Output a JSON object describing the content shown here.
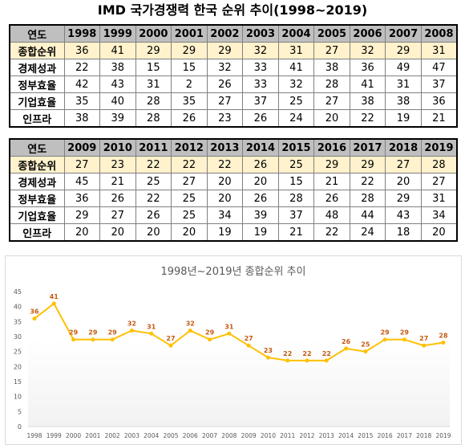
{
  "page_title": "IMD 국가경쟁력 한국 순위 추이(1998~2019)",
  "table": {
    "row_labels": [
      "연도",
      "종합순위",
      "경제성과",
      "정부효율",
      "기업효율",
      "인프라"
    ],
    "blocks": [
      {
        "years": [
          "1998",
          "1999",
          "2000",
          "2001",
          "2002",
          "2003",
          "2004",
          "2005",
          "2006",
          "2007",
          "2008"
        ],
        "rows": [
          [
            "36",
            "41",
            "29",
            "29",
            "29",
            "32",
            "31",
            "27",
            "32",
            "29",
            "31"
          ],
          [
            "22",
            "38",
            "15",
            "15",
            "32",
            "33",
            "41",
            "38",
            "36",
            "49",
            "47"
          ],
          [
            "42",
            "43",
            "31",
            "2",
            "26",
            "33",
            "32",
            "28",
            "41",
            "31",
            "37"
          ],
          [
            "35",
            "40",
            "28",
            "35",
            "27",
            "37",
            "25",
            "27",
            "38",
            "38",
            "36"
          ],
          [
            "38",
            "39",
            "28",
            "26",
            "23",
            "26",
            "24",
            "20",
            "22",
            "19",
            "21"
          ]
        ]
      },
      {
        "years": [
          "2009",
          "2010",
          "2011",
          "2012",
          "2013",
          "2014",
          "2015",
          "2016",
          "2017",
          "2018",
          "2019"
        ],
        "rows": [
          [
            "27",
            "23",
            "22",
            "22",
            "22",
            "26",
            "25",
            "29",
            "29",
            "27",
            "28"
          ],
          [
            "45",
            "21",
            "25",
            "27",
            "20",
            "20",
            "15",
            "21",
            "22",
            "20",
            "27"
          ],
          [
            "36",
            "26",
            "22",
            "25",
            "20",
            "26",
            "28",
            "26",
            "28",
            "29",
            "31"
          ],
          [
            "29",
            "27",
            "26",
            "25",
            "34",
            "39",
            "37",
            "48",
            "44",
            "43",
            "34"
          ],
          [
            "20",
            "20",
            "20",
            "20",
            "19",
            "19",
            "21",
            "22",
            "24",
            "18",
            "20"
          ]
        ]
      }
    ]
  },
  "chart_data": {
    "type": "line",
    "title": "1998년~2019년 종합순위 추이",
    "x": [
      "1998",
      "1999",
      "2000",
      "2001",
      "2002",
      "2003",
      "2004",
      "2005",
      "2006",
      "2007",
      "2008",
      "2009",
      "2010",
      "2011",
      "2012",
      "2013",
      "2014",
      "2015",
      "2016",
      "2017",
      "2018",
      "2019"
    ],
    "series": [
      {
        "values": [
          36,
          41,
          29,
          29,
          29,
          32,
          31,
          27,
          32,
          29,
          31,
          27,
          23,
          22,
          22,
          22,
          26,
          25,
          29,
          29,
          27,
          28
        ]
      }
    ],
    "ylim": [
      0,
      45
    ],
    "yticks": [
      0,
      5,
      10,
      15,
      20,
      25,
      30,
      35,
      40,
      45
    ],
    "grid": false,
    "legend": "none",
    "line_color": "#ffc000",
    "label_color": "#c55a11"
  }
}
